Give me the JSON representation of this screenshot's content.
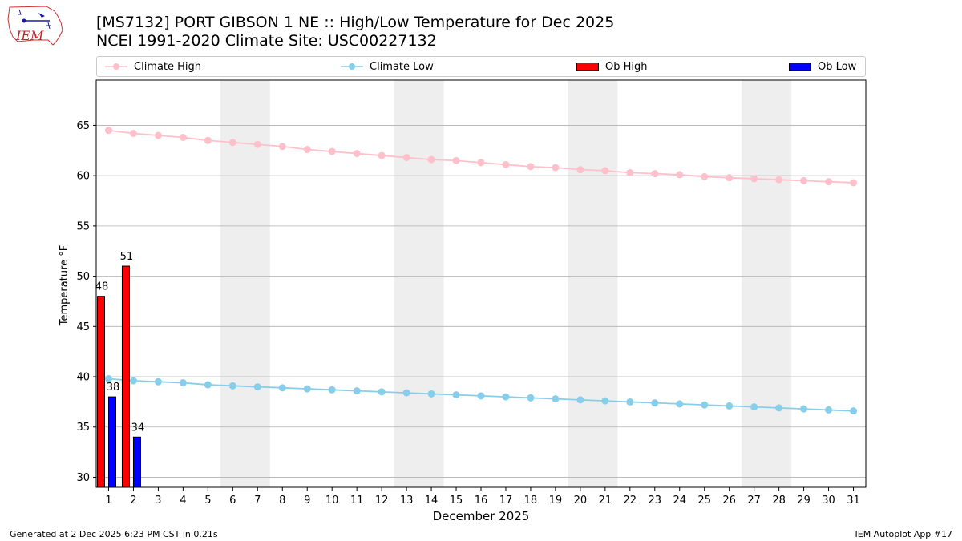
{
  "header": {
    "title_line1": "[MS7132] PORT GIBSON 1 NE :: High/Low Temperature for Dec 2025",
    "title_line2": "NCEI 1991-2020 Climate Site: USC00227132",
    "logo_text": "IEM"
  },
  "footer": {
    "generated": "Generated at 2 Dec 2025 6:23 PM CST in 0.21s",
    "app": "IEM Autoplot App #17"
  },
  "colors": {
    "climate_high": "#ffc0cb",
    "climate_low": "#87ceeb",
    "ob_high": "#ff0000",
    "ob_low": "#0000ff",
    "weekend_shade": "#eeeeee",
    "grid": "#b0b0b0"
  },
  "chart_data": {
    "type": "bar",
    "title": "[MS7132] PORT GIBSON 1 NE :: High/Low Temperature for Dec 2025",
    "subtitle": "NCEI 1991-2020 Climate Site: USC00227132",
    "xlabel": "December 2025",
    "ylabel": "Temperature °F",
    "xlim": [
      0.5,
      31.5
    ],
    "ylim": [
      29,
      69.5
    ],
    "y_ticks": [
      30,
      35,
      40,
      45,
      50,
      55,
      60,
      65
    ],
    "x_ticks": [
      1,
      2,
      3,
      4,
      5,
      6,
      7,
      8,
      9,
      10,
      11,
      12,
      13,
      14,
      15,
      16,
      17,
      18,
      19,
      20,
      21,
      22,
      23,
      24,
      25,
      26,
      27,
      28,
      29,
      30,
      31
    ],
    "grid": "horizontal",
    "legend_position": "top",
    "weekend_shading": [
      [
        5.5,
        7.5
      ],
      [
        12.5,
        14.5
      ],
      [
        19.5,
        21.5
      ],
      [
        26.5,
        28.5
      ]
    ],
    "days": [
      1,
      2,
      3,
      4,
      5,
      6,
      7,
      8,
      9,
      10,
      11,
      12,
      13,
      14,
      15,
      16,
      17,
      18,
      19,
      20,
      21,
      22,
      23,
      24,
      25,
      26,
      27,
      28,
      29,
      30,
      31
    ],
    "series": [
      {
        "name": "Climate High",
        "kind": "line",
        "values": [
          64.5,
          64.2,
          64.0,
          63.8,
          63.5,
          63.3,
          63.1,
          62.9,
          62.6,
          62.4,
          62.2,
          62.0,
          61.8,
          61.6,
          61.5,
          61.3,
          61.1,
          60.9,
          60.8,
          60.6,
          60.5,
          60.3,
          60.2,
          60.1,
          59.9,
          59.8,
          59.7,
          59.6,
          59.5,
          59.4,
          59.3
        ]
      },
      {
        "name": "Climate Low",
        "kind": "line",
        "values": [
          39.8,
          39.6,
          39.5,
          39.4,
          39.2,
          39.1,
          39.0,
          38.9,
          38.8,
          38.7,
          38.6,
          38.5,
          38.4,
          38.3,
          38.2,
          38.1,
          38.0,
          37.9,
          37.8,
          37.7,
          37.6,
          37.5,
          37.4,
          37.3,
          37.2,
          37.1,
          37.0,
          36.9,
          36.8,
          36.7,
          36.6
        ]
      },
      {
        "name": "Ob High",
        "kind": "bar",
        "days": [
          1,
          2
        ],
        "values": [
          48,
          51
        ],
        "labels": [
          "48",
          "51"
        ]
      },
      {
        "name": "Ob Low",
        "kind": "bar",
        "days": [
          1,
          2
        ],
        "values": [
          38,
          34
        ],
        "labels": [
          "38",
          "34"
        ]
      }
    ]
  }
}
